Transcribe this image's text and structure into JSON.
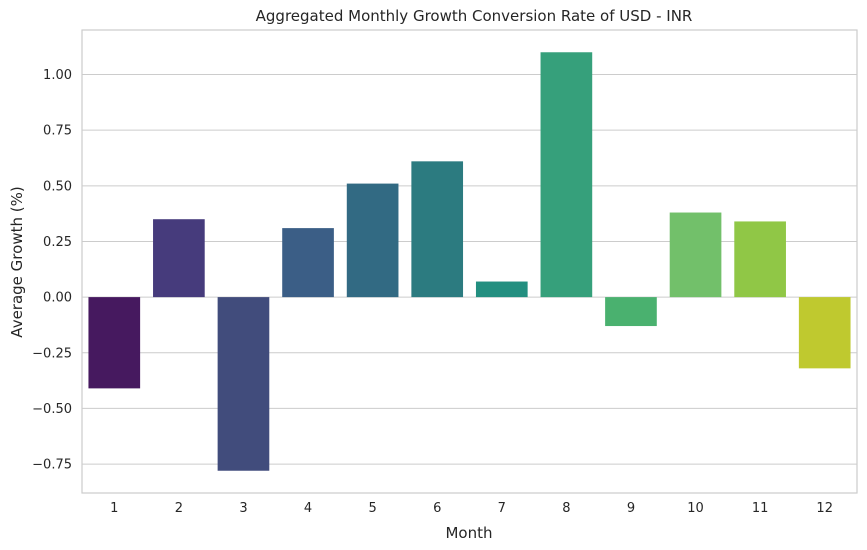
{
  "chart_data": {
    "type": "bar",
    "title": "Aggregated Monthly Growth Conversion Rate of USD - INR",
    "xlabel": "Month",
    "ylabel": "Average Growth (%)",
    "categories": [
      "1",
      "2",
      "3",
      "4",
      "5",
      "6",
      "7",
      "8",
      "9",
      "10",
      "11",
      "12"
    ],
    "values": [
      -0.41,
      0.35,
      -0.78,
      0.31,
      0.51,
      0.61,
      0.07,
      1.1,
      -0.13,
      0.38,
      0.34,
      -0.32
    ],
    "ylim": [
      -0.88,
      1.2
    ],
    "yticks": [
      -0.75,
      -0.5,
      -0.25,
      0.0,
      0.25,
      0.5,
      0.75,
      1.0
    ],
    "ytick_labels": [
      "−0.75",
      "−0.50",
      "−0.25",
      "0.00",
      "0.25",
      "0.50",
      "0.75",
      "1.00"
    ],
    "grid": "horizontal",
    "colors": [
      "#46195f",
      "#463b7c",
      "#414c7c",
      "#3b5e86",
      "#326a83",
      "#2c7b80",
      "#238f80",
      "#36a07b",
      "#4ab16f",
      "#72c06a",
      "#90c746",
      "#bfc92f"
    ]
  }
}
